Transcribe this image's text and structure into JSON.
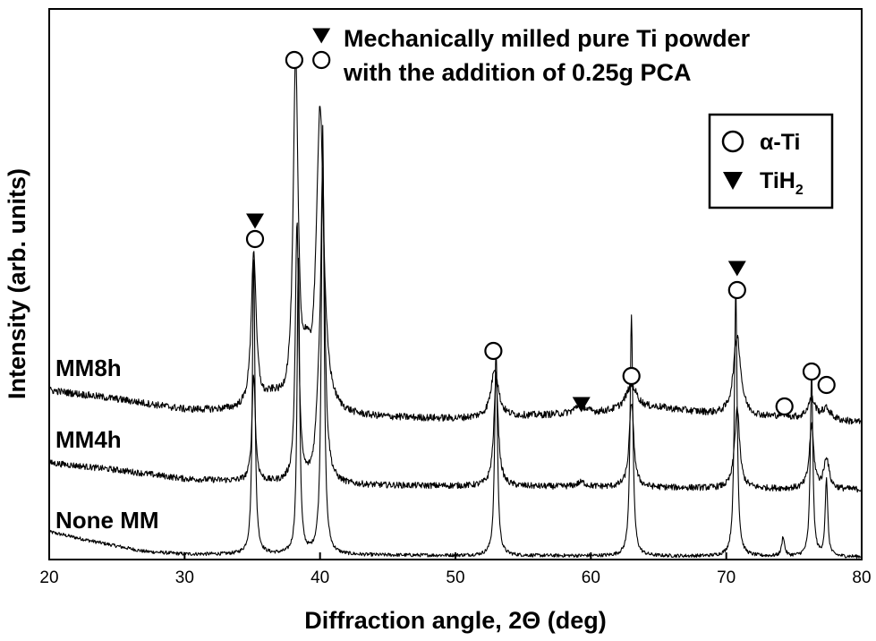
{
  "chart_data": {
    "type": "line",
    "title_line1": "Mechanically milled pure Ti powder",
    "title_line2": "with the addition of 0.25g PCA",
    "xlabel": "Diffraction angle, 2Θ (deg)",
    "ylabel": "Intensity (arb. units)",
    "xlim": [
      20,
      80
    ],
    "xticks": [
      "20",
      "30",
      "40",
      "50",
      "60",
      "70",
      "80"
    ],
    "x_tick_values": [
      20,
      30,
      40,
      50,
      60,
      70,
      80
    ],
    "y_ticks_shown": false,
    "legend": {
      "position": "top-right",
      "entries": [
        {
          "symbol": "circle",
          "label_main": "α-Ti",
          "label_sub": ""
        },
        {
          "symbol": "triangle-down",
          "label_main": "TiH",
          "label_sub": "2"
        }
      ]
    },
    "series": [
      {
        "name": "None MM",
        "label": "None MM",
        "offset": 0,
        "noise": 2,
        "baseline": [
          [
            20,
            28
          ],
          [
            23,
            18
          ],
          [
            27,
            6
          ],
          [
            30,
            3
          ],
          [
            40,
            2
          ],
          [
            60,
            1
          ],
          [
            80,
            0
          ]
        ],
        "peaks": [
          {
            "x": 35.1,
            "h": 340,
            "w": 0.11
          },
          {
            "x": 38.4,
            "h": 330,
            "w": 0.11
          },
          {
            "x": 40.2,
            "h": 480,
            "w": 0.12
          },
          {
            "x": 53.0,
            "h": 235,
            "w": 0.12
          },
          {
            "x": 63.0,
            "h": 270,
            "w": 0.12
          },
          {
            "x": 70.7,
            "h": 300,
            "w": 0.12
          },
          {
            "x": 74.2,
            "h": 22,
            "w": 0.12
          },
          {
            "x": 76.3,
            "h": 210,
            "w": 0.11
          },
          {
            "x": 77.4,
            "h": 85,
            "w": 0.11
          }
        ]
      },
      {
        "name": "MM4h",
        "label": "MM4h",
        "offset": 75,
        "noise": 3.5,
        "baseline": [
          [
            20,
            30
          ],
          [
            25,
            22
          ],
          [
            30,
            12
          ],
          [
            40,
            5
          ],
          [
            60,
            3
          ],
          [
            80,
            0
          ]
        ],
        "peaks": [
          {
            "x": 35.1,
            "h": 120,
            "w": 0.15
          },
          {
            "x": 38.3,
            "h": 290,
            "w": 0.15
          },
          {
            "x": 39.9,
            "h": 60,
            "w": 0.25
          },
          {
            "x": 40.2,
            "h": 330,
            "w": 0.18
          },
          {
            "x": 53.0,
            "h": 120,
            "w": 0.2
          },
          {
            "x": 59.3,
            "h": 5,
            "w": 0.4
          },
          {
            "x": 63.0,
            "h": 95,
            "w": 0.2
          },
          {
            "x": 70.8,
            "h": 90,
            "w": 0.22
          },
          {
            "x": 76.3,
            "h": 70,
            "w": 0.2
          },
          {
            "x": 77.4,
            "h": 35,
            "w": 0.22
          }
        ]
      },
      {
        "name": "MM8h",
        "label": "MM8h",
        "offset": 150,
        "noise": 4,
        "baseline": [
          [
            20,
            36
          ],
          [
            25,
            26
          ],
          [
            30,
            14
          ],
          [
            34,
            12
          ],
          [
            40,
            6
          ],
          [
            50,
            4
          ],
          [
            60,
            10
          ],
          [
            65,
            16
          ],
          [
            70,
            8
          ],
          [
            80,
            0
          ]
        ],
        "peaks": [
          {
            "x": 35.1,
            "h": 175,
            "w": 0.22
          },
          {
            "x": 36.5,
            "h": 15,
            "w": 0.8
          },
          {
            "x": 38.2,
            "h": 385,
            "w": 0.22
          },
          {
            "x": 39.0,
            "h": 40,
            "w": 0.3
          },
          {
            "x": 40.0,
            "h": 340,
            "w": 0.32
          },
          {
            "x": 52.9,
            "h": 55,
            "w": 0.32
          },
          {
            "x": 59.2,
            "h": 10,
            "w": 0.45
          },
          {
            "x": 63.0,
            "h": 28,
            "w": 0.5
          },
          {
            "x": 70.8,
            "h": 90,
            "w": 0.32
          },
          {
            "x": 74.2,
            "h": 4,
            "w": 0.4
          },
          {
            "x": 76.3,
            "h": 22,
            "w": 0.35
          },
          {
            "x": 77.4,
            "h": 12,
            "w": 0.4
          }
        ]
      }
    ],
    "markers": [
      {
        "type": "triangle-down",
        "x": 35.2,
        "y_level": 375
      },
      {
        "type": "circle",
        "x": 35.2,
        "y_level": 355
      },
      {
        "type": "circle",
        "x": 38.1,
        "y_level": 555
      },
      {
        "type": "circle",
        "x": 40.1,
        "y_level": 555
      },
      {
        "type": "triangle-down",
        "x": 40.1,
        "y_level": 582
      },
      {
        "type": "circle",
        "x": 52.8,
        "y_level": 230
      },
      {
        "type": "triangle-down",
        "x": 59.3,
        "y_level": 170
      },
      {
        "type": "circle",
        "x": 63.0,
        "y_level": 202
      },
      {
        "type": "triangle-down",
        "x": 70.8,
        "y_level": 322
      },
      {
        "type": "circle",
        "x": 70.8,
        "y_level": 298
      },
      {
        "type": "circle",
        "x": 74.3,
        "y_level": 168
      },
      {
        "type": "circle",
        "x": 76.3,
        "y_level": 207
      },
      {
        "type": "circle",
        "x": 77.4,
        "y_level": 192
      }
    ]
  }
}
